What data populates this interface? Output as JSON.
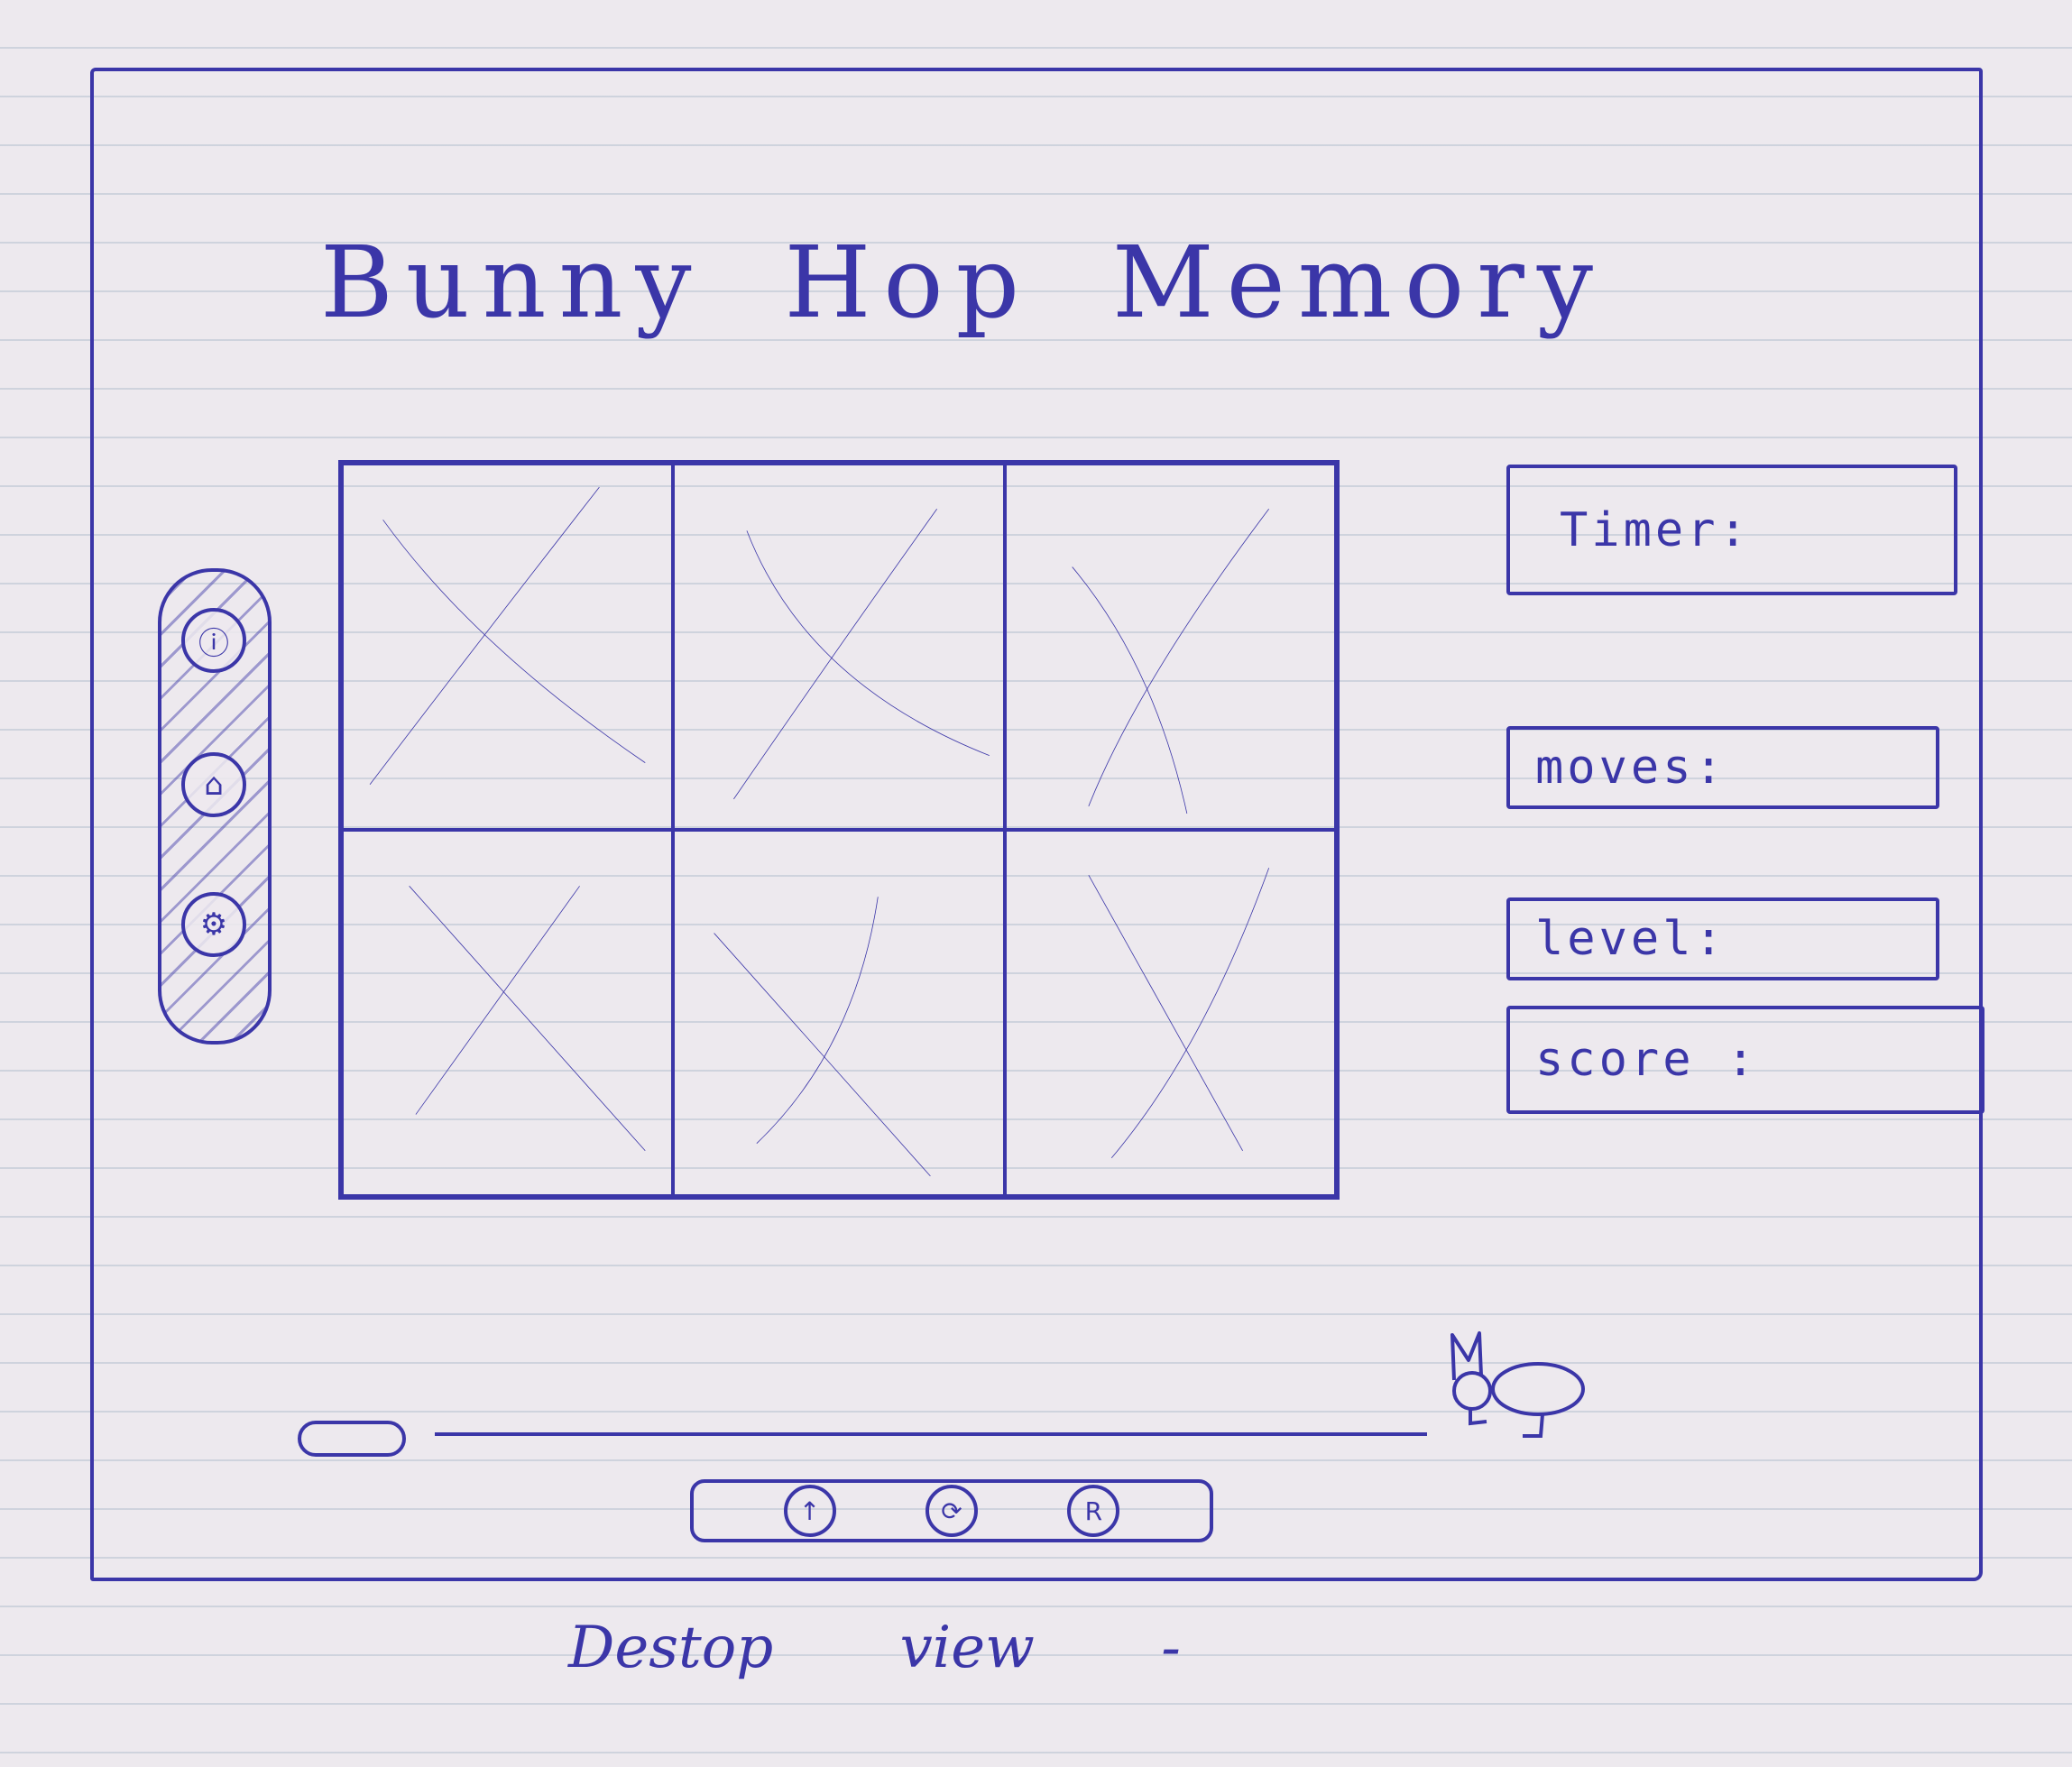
{
  "header": {
    "title": "Bunny Hop Memory"
  },
  "sidebar": {
    "items": [
      {
        "icon": "info-icon",
        "glyph": "ⓘ"
      },
      {
        "icon": "home-icon",
        "glyph": "⌂"
      },
      {
        "icon": "settings-icon",
        "glyph": "⚙"
      }
    ]
  },
  "board": {
    "rows": 2,
    "columns": 3,
    "cards": [
      "placeholder",
      "placeholder",
      "placeholder",
      "placeholder",
      "placeholder",
      "placeholder"
    ]
  },
  "stats": {
    "timer_label": "Timer:",
    "moves_label": "moves:",
    "level_label": "level:",
    "score_label": "score :"
  },
  "toolbar": {
    "buttons": [
      {
        "icon": "up-arrow-icon",
        "glyph": "↑"
      },
      {
        "icon": "refresh-icon",
        "glyph": "⟳"
      },
      {
        "icon": "reset-icon",
        "glyph": "R"
      }
    ]
  },
  "caption": "Destop view -",
  "colors": {
    "ink": "#3b36a8",
    "paper": "#ede9ee"
  }
}
